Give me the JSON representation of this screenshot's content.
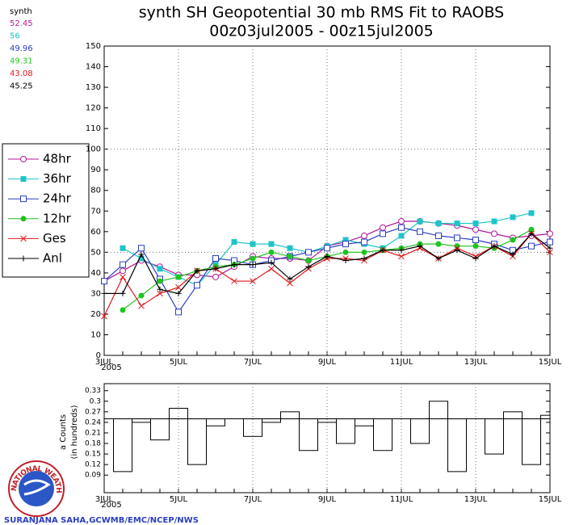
{
  "chart_data": [
    {
      "type": "line",
      "title": "synth SH Geopotential 30 mb RMS Fit to RAOBS",
      "subtitle": "00z03jul2005 - 00z15jul2005",
      "model_label": "synth",
      "x_year": "2005",
      "categories": [
        "3JUL",
        null,
        null,
        null,
        "5JUL",
        null,
        null,
        null,
        "7JUL",
        null,
        null,
        null,
        "9JUL",
        null,
        null,
        null,
        "11JUL",
        null,
        null,
        null,
        "13JUL",
        null,
        null,
        null,
        "15JUL"
      ],
      "ylim": [
        0,
        150
      ],
      "yticks": [
        0,
        10,
        20,
        30,
        40,
        50,
        60,
        70,
        80,
        90,
        100,
        110,
        120,
        130,
        140,
        150
      ],
      "grid_y": [
        50,
        100
      ],
      "series": [
        {
          "name": "48hr",
          "color": "#b0199b",
          "marker": "open-circle",
          "mean": 52.45,
          "values": [
            36,
            41,
            46,
            43,
            39,
            39,
            38,
            43,
            48,
            47,
            47,
            46,
            53,
            55,
            58,
            62,
            65,
            65,
            64,
            63,
            61,
            59,
            57,
            58,
            59
          ]
        },
        {
          "name": "36hr",
          "color": "#1ec4c8",
          "marker": "filled-square",
          "mean": 56,
          "values": [
            null,
            52,
            47,
            42,
            38,
            34,
            44,
            55,
            54,
            54,
            52,
            50,
            53,
            56,
            54,
            52,
            58,
            65,
            64,
            64,
            64,
            65,
            67,
            69,
            null
          ]
        },
        {
          "name": "24hr",
          "color": "#2b3fc0",
          "marker": "open-square",
          "mean": 49.96,
          "values": [
            36,
            44,
            52,
            37,
            21,
            34,
            47,
            46,
            44,
            46,
            48,
            50,
            52,
            54,
            55,
            59,
            62,
            60,
            58,
            57,
            56,
            54,
            51,
            53,
            55
          ]
        },
        {
          "name": "12hr",
          "color": "#1fc41f",
          "marker": "filled-circle",
          "mean": 49.31,
          "values": [
            null,
            22,
            29,
            36,
            38,
            41,
            43,
            44,
            47,
            50,
            48,
            46,
            48,
            50,
            50,
            51,
            52,
            54,
            54,
            53,
            53,
            52,
            56,
            61,
            null
          ]
        },
        {
          "name": "Ges",
          "color": "#e01a1a",
          "marker": "x",
          "mean": 43.08,
          "values": [
            19,
            38,
            24,
            30,
            33,
            41,
            42,
            36,
            36,
            42,
            35,
            42,
            47,
            47,
            46,
            51,
            48,
            52,
            47,
            52,
            48,
            53,
            48,
            59,
            50
          ]
        },
        {
          "name": "Anl",
          "color": "#000000",
          "marker": "plus",
          "mean": 45.25,
          "values": [
            30,
            30,
            49,
            32,
            30,
            41,
            42,
            44,
            44,
            45,
            37,
            43,
            48,
            46,
            47,
            51,
            51,
            53,
            47,
            51,
            47,
            53,
            49,
            59,
            52
          ]
        }
      ]
    },
    {
      "type": "bar",
      "y_label": "a Counts",
      "y_label2": "(in hundreds)",
      "x_year": "2005",
      "categories": [
        "3JUL",
        null,
        null,
        null,
        "5JUL",
        null,
        null,
        null,
        "7JUL",
        null,
        null,
        null,
        "9JUL",
        null,
        null,
        null,
        "11JUL",
        null,
        null,
        null,
        "13JUL",
        null,
        null,
        null,
        "15JUL"
      ],
      "ylim": [
        0.04,
        0.35
      ],
      "yticks": [
        0.09,
        0.12,
        0.15,
        0.18,
        0.21,
        0.24,
        0.27,
        0.3,
        0.33
      ],
      "reference_line": 0.25,
      "color": "#000000",
      "values": [
        0.25,
        0.1,
        0.24,
        0.19,
        0.28,
        0.12,
        0.23,
        0.25,
        0.2,
        0.24,
        0.27,
        0.16,
        0.24,
        0.18,
        0.23,
        0.16,
        0.25,
        0.18,
        0.3,
        0.1,
        0.25,
        0.15,
        0.27,
        0.12,
        0.26
      ]
    }
  ],
  "logo_text": "NATIONAL WEATHER SERVICE",
  "credit": "SURANJANA SAHA,GCWMB/EMC/NCEP/NWS"
}
